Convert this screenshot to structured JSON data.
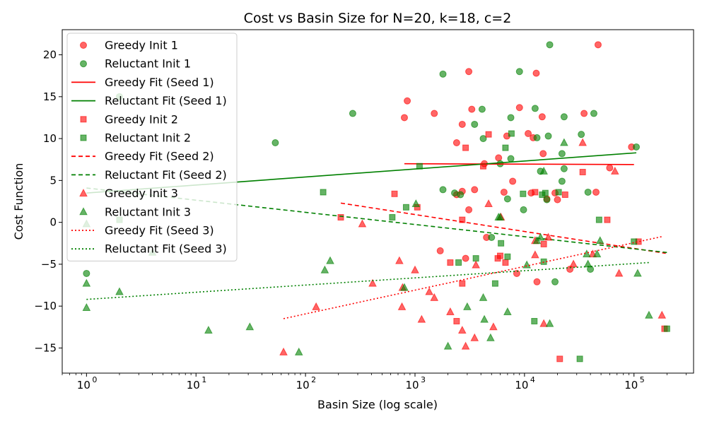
{
  "chart_data": {
    "type": "scatter",
    "title": "Cost vs Basin Size for N=20, k=18, c=2",
    "xlabel": "Basin Size (log scale)",
    "ylabel": "Cost Function",
    "xscale": "log",
    "xlim": [
      0.6,
      350000
    ],
    "ylim": [
      -18,
      23
    ],
    "x_ticks": [
      {
        "value": 1,
        "label": "10",
        "exp": "0"
      },
      {
        "value": 10,
        "label": "10",
        "exp": "1"
      },
      {
        "value": 100,
        "label": "10",
        "exp": "2"
      },
      {
        "value": 1000,
        "label": "10",
        "exp": "3"
      },
      {
        "value": 10000,
        "label": "10",
        "exp": "4"
      },
      {
        "value": 100000,
        "label": "10",
        "exp": "5"
      }
    ],
    "y_ticks": [
      -15,
      -10,
      -5,
      0,
      5,
      10,
      15,
      20
    ],
    "grid": false,
    "legend_position": "top-left",
    "series": [
      {
        "name": "Greedy Init 1",
        "kind": "scatter",
        "marker": "circle",
        "color": "#ff0000",
        "alpha": 0.6,
        "points": [
          [
            800,
            12.5
          ],
          [
            850,
            14.5
          ],
          [
            1500,
            13
          ],
          [
            1700,
            -3.4
          ],
          [
            2400,
            3.3
          ],
          [
            2700,
            3.7
          ],
          [
            2700,
            11.7
          ],
          [
            3100,
            1.5
          ],
          [
            3300,
            13.5
          ],
          [
            3500,
            3.9
          ],
          [
            4300,
            7
          ],
          [
            4500,
            -1.8
          ],
          [
            5800,
            7.7
          ],
          [
            6500,
            3.6
          ],
          [
            6900,
            10.3
          ],
          [
            7800,
            4.9
          ],
          [
            8500,
            -6.1
          ],
          [
            9000,
            13.7
          ],
          [
            10800,
            10.6
          ],
          [
            11500,
            3.5
          ],
          [
            12000,
            10.1
          ],
          [
            12800,
            17.8
          ],
          [
            13000,
            -7.1
          ],
          [
            14500,
            12.6
          ],
          [
            14800,
            8.2
          ],
          [
            16000,
            2.8
          ],
          [
            19000,
            3.5
          ],
          [
            20000,
            2.7
          ],
          [
            26000,
            -5.6
          ],
          [
            35000,
            13
          ],
          [
            45000,
            3.6
          ],
          [
            47000,
            21.2
          ],
          [
            60000,
            6.5
          ],
          [
            95000,
            9
          ],
          [
            2400,
            9.5
          ],
          [
            3100,
            18
          ],
          [
            2900,
            -4.3
          ]
        ]
      },
      {
        "name": "Reluctant Init 1",
        "kind": "scatter",
        "marker": "circle",
        "color": "#008000",
        "alpha": 0.6,
        "points": [
          [
            1,
            -6.1
          ],
          [
            2,
            15
          ],
          [
            53,
            9.5
          ],
          [
            270,
            13
          ],
          [
            1800,
            17.7
          ],
          [
            1800,
            3.9
          ],
          [
            2300,
            3.5
          ],
          [
            2600,
            3.3
          ],
          [
            3500,
            11.7
          ],
          [
            4100,
            13.5
          ],
          [
            4200,
            10
          ],
          [
            5000,
            -1.8
          ],
          [
            6000,
            7
          ],
          [
            7000,
            2.8
          ],
          [
            7500,
            12.5
          ],
          [
            7500,
            7.6
          ],
          [
            9000,
            18
          ],
          [
            9800,
            1.5
          ],
          [
            12500,
            13.6
          ],
          [
            13000,
            10.1
          ],
          [
            14000,
            6.1
          ],
          [
            16000,
            2.7
          ],
          [
            16500,
            10.3
          ],
          [
            17000,
            21.2
          ],
          [
            19000,
            -7.1
          ],
          [
            22000,
            4.9
          ],
          [
            22000,
            8.2
          ],
          [
            23000,
            12.6
          ],
          [
            23000,
            6.4
          ],
          [
            33000,
            10.5
          ],
          [
            38000,
            3.6
          ],
          [
            40000,
            -5.6
          ],
          [
            43000,
            13
          ],
          [
            105000,
            9
          ]
        ]
      },
      {
        "name": "Greedy Fit (Seed 1)",
        "kind": "line",
        "dash": "solid",
        "color": "#ff0000",
        "points": [
          [
            800,
            7
          ],
          [
            100000,
            6.9
          ]
        ]
      },
      {
        "name": "Reluctant Fit (Seed 1)",
        "kind": "line",
        "dash": "solid",
        "color": "#008000",
        "points": [
          [
            1,
            3.5
          ],
          [
            105000,
            8.3
          ]
        ]
      },
      {
        "name": "Greedy Init 2",
        "kind": "scatter",
        "marker": "square",
        "color": "#ff0000",
        "alpha": 0.6,
        "points": [
          [
            210,
            0.6
          ],
          [
            650,
            3.4
          ],
          [
            1050,
            1.8
          ],
          [
            2100,
            -4.8
          ],
          [
            2400,
            -11.8
          ],
          [
            2700,
            0.3
          ],
          [
            2700,
            -7.3
          ],
          [
            2900,
            8.9
          ],
          [
            4200,
            6.7
          ],
          [
            4700,
            10.5
          ],
          [
            5700,
            -4.3
          ],
          [
            6000,
            -4
          ],
          [
            6700,
            -4.8
          ],
          [
            12500,
            3.6
          ],
          [
            15000,
            -2.6
          ],
          [
            21000,
            -16.3
          ],
          [
            23500,
            3.3
          ],
          [
            34000,
            6
          ],
          [
            57000,
            0.3
          ],
          [
            110000,
            -2.3
          ],
          [
            190000,
            -12.7
          ]
        ]
      },
      {
        "name": "Reluctant Init 2",
        "kind": "scatter",
        "marker": "square",
        "color": "#008000",
        "alpha": 0.6,
        "points": [
          [
            2,
            0.3
          ],
          [
            145,
            3.6
          ],
          [
            620,
            0.6
          ],
          [
            830,
            1.8
          ],
          [
            1100,
            6.7
          ],
          [
            2500,
            -4.8
          ],
          [
            3600,
            -4.3
          ],
          [
            5400,
            -7.3
          ],
          [
            6100,
            -2.5
          ],
          [
            6700,
            8.9
          ],
          [
            7000,
            -4.1
          ],
          [
            7600,
            10.6
          ],
          [
            9700,
            3.4
          ],
          [
            12300,
            -11.8
          ],
          [
            14500,
            3.3
          ],
          [
            15000,
            -4.7
          ],
          [
            15500,
            3.5
          ],
          [
            20500,
            3.6
          ],
          [
            32000,
            -16.3
          ],
          [
            48000,
            0.3
          ],
          [
            100000,
            -2.3
          ],
          [
            200000,
            -12.7
          ]
        ]
      },
      {
        "name": "Greedy Fit (Seed 2)",
        "kind": "line",
        "dash": "dashed",
        "color": "#ff0000",
        "points": [
          [
            210,
            2.3
          ],
          [
            195000,
            -3.7
          ]
        ]
      },
      {
        "name": "Reluctant Fit (Seed 2)",
        "kind": "line",
        "dash": "dashed",
        "color": "#008000",
        "points": [
          [
            1,
            4.1
          ],
          [
            200000,
            -3.6
          ]
        ]
      },
      {
        "name": "Greedy Init 3",
        "kind": "scatter",
        "marker": "triangle",
        "color": "#ff0000",
        "alpha": 0.6,
        "points": [
          [
            63,
            -15.5
          ],
          [
            125,
            -10.1
          ],
          [
            330,
            -0.2
          ],
          [
            410,
            -7.3
          ],
          [
            720,
            -4.6
          ],
          [
            760,
            -10.1
          ],
          [
            770,
            -7.8
          ],
          [
            1000,
            -5.7
          ],
          [
            1150,
            -11.6
          ],
          [
            1350,
            -8.3
          ],
          [
            1500,
            -9
          ],
          [
            2100,
            -10.7
          ],
          [
            2700,
            -12.9
          ],
          [
            2900,
            -14.8
          ],
          [
            3500,
            -13.8
          ],
          [
            3600,
            -5.1
          ],
          [
            4700,
            2.2
          ],
          [
            5200,
            -12.5
          ],
          [
            6100,
            0.6
          ],
          [
            12500,
            -2.2
          ],
          [
            12500,
            -3.9
          ],
          [
            15000,
            -12.1
          ],
          [
            16500,
            -1.8
          ],
          [
            28000,
            -5
          ],
          [
            34000,
            9.5
          ],
          [
            42000,
            -3.8
          ],
          [
            67000,
            6.1
          ],
          [
            73000,
            -6.1
          ],
          [
            180000,
            -11.1
          ]
        ]
      },
      {
        "name": "Reluctant Init 3",
        "kind": "scatter",
        "marker": "triangle",
        "color": "#008000",
        "alpha": 0.6,
        "points": [
          [
            1,
            -7.3
          ],
          [
            1,
            -10.2
          ],
          [
            1,
            -0.2
          ],
          [
            2,
            -8.3
          ],
          [
            4,
            -3.6
          ],
          [
            13,
            -12.9
          ],
          [
            31,
            -12.5
          ],
          [
            87,
            -15.5
          ],
          [
            150,
            -5.7
          ],
          [
            168,
            -4.6
          ],
          [
            800,
            -7.8
          ],
          [
            1020,
            2.2
          ],
          [
            2000,
            -14.8
          ],
          [
            3000,
            -10.1
          ],
          [
            4200,
            -9
          ],
          [
            4300,
            -11.6
          ],
          [
            4900,
            -13.8
          ],
          [
            5800,
            0.6
          ],
          [
            6000,
            0.6
          ],
          [
            7000,
            -10.7
          ],
          [
            10500,
            -5.1
          ],
          [
            13000,
            -2.2
          ],
          [
            14000,
            -1.8
          ],
          [
            15000,
            6.1
          ],
          [
            17000,
            -12.1
          ],
          [
            23000,
            9.5
          ],
          [
            37000,
            -3.8
          ],
          [
            38000,
            -5
          ],
          [
            46000,
            -3.8
          ],
          [
            49000,
            -2.2
          ],
          [
            108000,
            -6.1
          ],
          [
            137000,
            -11.1
          ]
        ]
      },
      {
        "name": "Greedy Fit (Seed 3)",
        "kind": "line",
        "dash": "dotted",
        "color": "#ff0000",
        "points": [
          [
            63,
            -11.5
          ],
          [
            180000,
            -1.7
          ]
        ]
      },
      {
        "name": "Reluctant Fit (Seed 3)",
        "kind": "line",
        "dash": "dotted",
        "color": "#008000",
        "points": [
          [
            1,
            -9.2
          ],
          [
            137000,
            -4.8
          ]
        ]
      }
    ]
  }
}
